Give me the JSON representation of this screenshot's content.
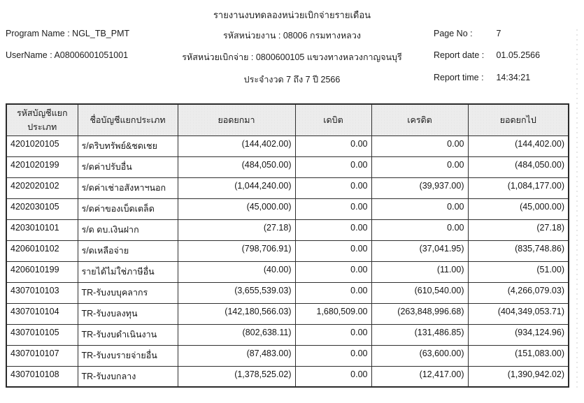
{
  "report": {
    "title": "รายงานงบทดลองหน่วยเบิกจ่ายรายเดือน",
    "program_name_line": "Program Name : NGL_TB_PMT",
    "username_line": "UserName : A08006001051001",
    "agency_line": "รหัสหน่วยงาน : 08006 กรมทางหลวง",
    "disburse_unit_line": "รหัสหน่วยเบิกจ่าย : 0800600105 แขวงทางหลวงกาญจนบุรี",
    "period_line": "ประจำงวด 7 ถึง 7 ปี 2566",
    "page_no_label": "Page No :",
    "page_no": "7",
    "report_date_label": "Report date :",
    "report_date": "01.05.2566",
    "report_time_label": "Report time :",
    "report_time": "14:34:21"
  },
  "table": {
    "headers": [
      "รหัสบัญชีแยกประเภท",
      "ชื่อบัญชีแยกประเภท",
      "ยอดยกมา",
      "เดบิต",
      "เครดิต",
      "ยอดยกไป"
    ],
    "rows": [
      [
        "4201020105",
        "ร/ดริบทรัพย์&ชดเชย",
        "(144,402.00)",
        "0.00",
        "0.00",
        "(144,402.00)"
      ],
      [
        "4201020199",
        "ร/ดค่าปรับอื่น",
        "(484,050.00)",
        "0.00",
        "0.00",
        "(484,050.00)"
      ],
      [
        "4202020102",
        "ร/ดค่าเช่าอสังหาฯนอก",
        "(1,044,240.00)",
        "0.00",
        "(39,937.00)",
        "(1,084,177.00)"
      ],
      [
        "4202030105",
        "ร/ดค่าของเบ็ดเตล็ด",
        "(45,000.00)",
        "0.00",
        "0.00",
        "(45,000.00)"
      ],
      [
        "4203010101",
        "ร/ด ดบ.เงินฝาก",
        "(27.18)",
        "0.00",
        "0.00",
        "(27.18)"
      ],
      [
        "4206010102",
        "ร/ดเหลือจ่าย",
        "(798,706.91)",
        "0.00",
        "(37,041.95)",
        "(835,748.86)"
      ],
      [
        "4206010199",
        "รายได้ไม่ใช่ภาษีอื่น",
        "(40.00)",
        "0.00",
        "(11.00)",
        "(51.00)"
      ],
      [
        "4307010103",
        "TR-รับงบบุคลากร",
        "(3,655,539.03)",
        "0.00",
        "(610,540.00)",
        "(4,266,079.03)"
      ],
      [
        "4307010104",
        "TR-รับงบลงทุน",
        "(142,180,566.03)",
        "1,680,509.00",
        "(263,848,996.68)",
        "(404,349,053.71)"
      ],
      [
        "4307010105",
        "TR-รับงบดำเนินงาน",
        "(802,638.11)",
        "0.00",
        "(131,486.85)",
        "(934,124.96)"
      ],
      [
        "4307010107",
        "TR-รับงบรายจ่ายอื่น",
        "(87,483.00)",
        "0.00",
        "(63,600.00)",
        "(151,083.00)"
      ],
      [
        "4307010108",
        "TR-รับงบกลาง",
        "(1,378,525.02)",
        "0.00",
        "(12,417.00)",
        "(1,390,942.02)"
      ]
    ],
    "column_names": [
      "cell-account-code",
      "cell-account-name",
      "cell-beginning-balance",
      "cell-debit",
      "cell-credit",
      "cell-ending-balance"
    ],
    "header_names": [
      "col-header-account-code",
      "col-header-account-name",
      "col-header-beginning-balance",
      "col-header-debit",
      "col-header-credit",
      "col-header-ending-balance"
    ]
  },
  "colors": {
    "text": "#1c1c1c",
    "table_border": "#2f2f2f",
    "header_fill": "#ececec"
  }
}
